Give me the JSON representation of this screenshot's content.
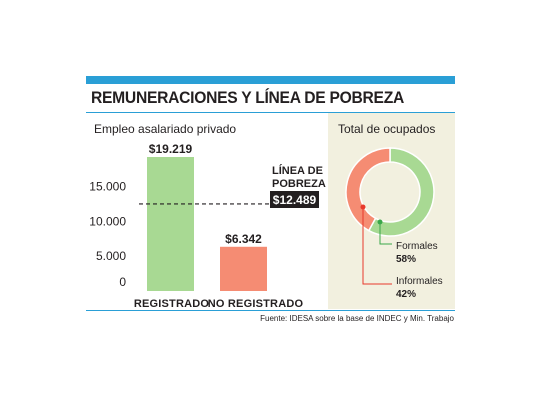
{
  "header": {
    "title": "REMUNERACIONES Y LÍNEA DE POBREZA"
  },
  "colors": {
    "accent": "#2a9fd6",
    "registrado": "#a8d993",
    "no_registrado": "#f58c73",
    "formales": "#a8d993",
    "informales": "#f58c73",
    "panel_bg": "#f2f0df",
    "poverty_label_bg": "#231f20"
  },
  "chart_data": [
    {
      "type": "bar",
      "title": "Empleo asalariado privado",
      "categories": [
        "REGISTRADO",
        "NO REGISTRADO"
      ],
      "values": [
        19219,
        6342
      ],
      "value_labels": [
        "$19.219",
        "$6.342"
      ],
      "yticks": [
        0,
        5000,
        10000,
        15000
      ],
      "ytick_labels": [
        "0",
        "5.000",
        "10.000",
        "15.000"
      ],
      "ylim": [
        0,
        20000
      ],
      "reference_line": {
        "label_line1": "LÍNEA DE",
        "label_line2": "POBREZA",
        "value": 12489,
        "value_label": "$12.489"
      }
    },
    {
      "type": "pie",
      "title": "Total de ocupados",
      "slices": [
        {
          "label": "Formales",
          "value": 58,
          "pct_label": "58%"
        },
        {
          "label": "Informales",
          "value": 42,
          "pct_label": "42%"
        }
      ]
    }
  ],
  "footer": {
    "source": "Fuente: IDESA sobre la base de INDEC y Min. Trabajo"
  }
}
